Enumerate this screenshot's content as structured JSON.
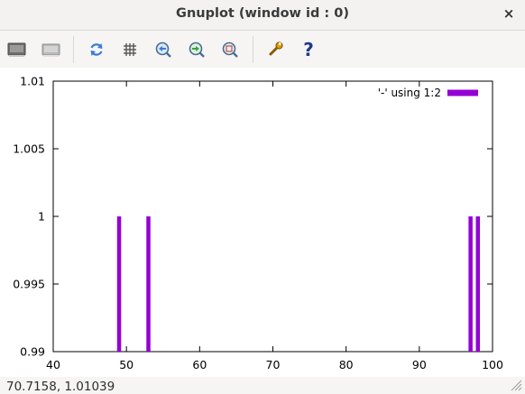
{
  "window": {
    "title": "Gnuplot (window id : 0)",
    "close_glyph": "×"
  },
  "toolbar": {
    "buttons": [
      {
        "icon": "copy-to-clipboard-icon"
      },
      {
        "icon": "print-icon"
      },
      {
        "icon": "replot-icon"
      },
      {
        "icon": "grid-icon"
      },
      {
        "icon": "zoom-previous-icon"
      },
      {
        "icon": "zoom-next-icon"
      },
      {
        "icon": "autoscale-icon"
      },
      {
        "icon": "options-wrench-icon"
      },
      {
        "icon": "help-icon"
      }
    ],
    "help_glyph": "?"
  },
  "status": {
    "coordinates": "70.7158,   1.01039"
  },
  "chart_data": {
    "type": "bar",
    "title": "",
    "xlabel": "",
    "ylabel": "",
    "xlim": [
      40,
      100
    ],
    "ylim": [
      0.99,
      1.01
    ],
    "x_ticks": [
      "40",
      "50",
      "60",
      "70",
      "80",
      "90",
      "100"
    ],
    "y_ticks": [
      "0.99",
      "0.995",
      "1",
      "1.005",
      "1.01"
    ],
    "series": [
      {
        "name": "'-' using 1:2",
        "color": "#9400d3",
        "points": [
          {
            "x": 49,
            "y": 1
          },
          {
            "x": 53,
            "y": 1
          },
          {
            "x": 97,
            "y": 1
          },
          {
            "x": 98,
            "y": 1
          }
        ]
      }
    ],
    "grid": false,
    "legend_position": "top-right"
  }
}
